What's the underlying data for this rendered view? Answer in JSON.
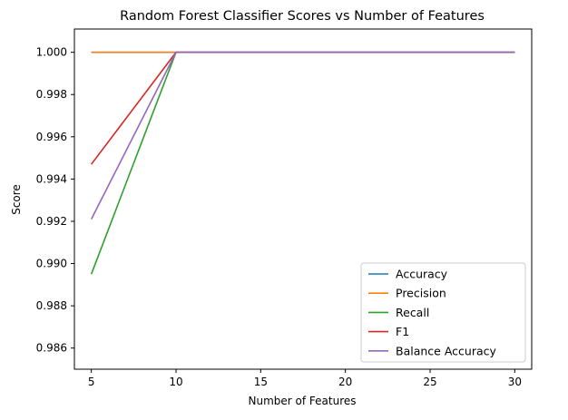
{
  "chart_data": {
    "type": "line",
    "title": "Random Forest Classifier Scores vs Number of Features",
    "xlabel": "Number of Features",
    "ylabel": "Score",
    "x": [
      5,
      10,
      30
    ],
    "xlim": [
      4,
      31
    ],
    "ylim": [
      0.985,
      1.0011
    ],
    "xticks": [
      5,
      10,
      15,
      20,
      25,
      30
    ],
    "xtick_labels": [
      "5",
      "10",
      "15",
      "20",
      "25",
      "30"
    ],
    "yticks": [
      0.986,
      0.988,
      0.99,
      0.992,
      0.994,
      0.996,
      0.998,
      1.0
    ],
    "ytick_labels": [
      "0.986",
      "0.988",
      "0.990",
      "0.992",
      "0.994",
      "0.996",
      "0.998",
      "1.000"
    ],
    "grid": false,
    "legend_position": "lower-right",
    "series": [
      {
        "name": "Accuracy",
        "color": "#1f77b4",
        "values": [
          1.0,
          1.0,
          1.0
        ]
      },
      {
        "name": "Precision",
        "color": "#ff7f0e",
        "values": [
          1.0,
          1.0,
          1.0
        ]
      },
      {
        "name": "Recall",
        "color": "#2ca02c",
        "values": [
          0.9895,
          1.0,
          1.0
        ]
      },
      {
        "name": "F1",
        "color": "#d62728",
        "values": [
          0.9947,
          1.0,
          1.0
        ]
      },
      {
        "name": "Balance Accuracy",
        "color": "#9467bd",
        "values": [
          0.9921,
          1.0,
          1.0
        ]
      }
    ]
  }
}
